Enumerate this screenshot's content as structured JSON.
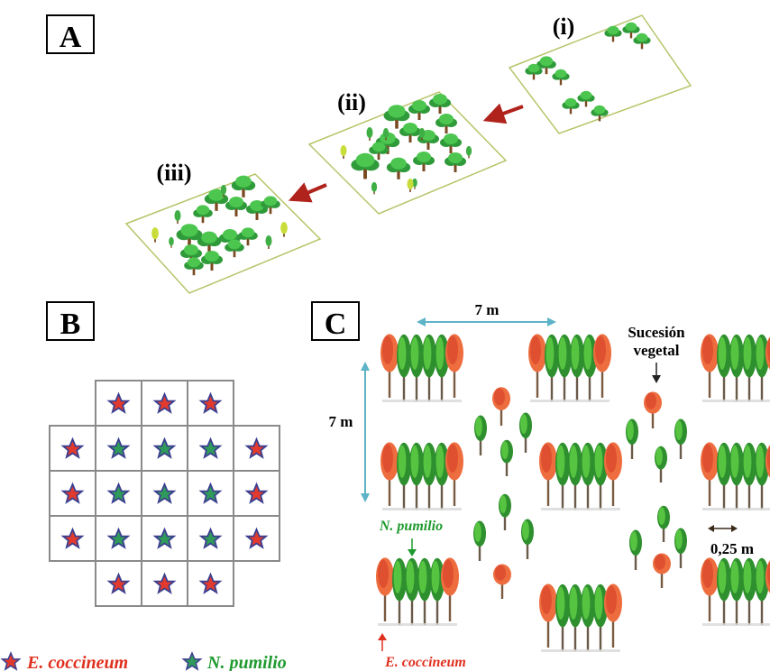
{
  "panels": {
    "a": {
      "letter": "A",
      "stages": [
        "(i)",
        "(ii)",
        "(iii)"
      ]
    },
    "b": {
      "letter": "B",
      "grid_rows": [
        [
          "",
          "red",
          "red",
          "red",
          ""
        ],
        [
          "red",
          "green",
          "green",
          "green",
          "red"
        ],
        [
          "red",
          "green",
          "green",
          "green",
          "red"
        ],
        [
          "red",
          "green",
          "green",
          "green",
          "red"
        ],
        [
          "",
          "red",
          "red",
          "red",
          ""
        ]
      ]
    },
    "c": {
      "letter": "C",
      "width_label": "7 m",
      "height_label": "7 m",
      "succession_line1": "Sucesión",
      "succession_line2": "vegetal",
      "spacing_label": "0,25 m",
      "n_pumilio_label": "N. pumilio",
      "e_coccineum_label": "E. coccineum"
    }
  },
  "legend": {
    "e_coccineum": "E. coccineum",
    "n_pumilio": "N. pumilio"
  },
  "colors": {
    "star_red": "#e23b2e",
    "star_green": "#2f9a5a",
    "star_outline": "#3b3f8f",
    "dim_arrow": "#5eb3c8",
    "plot_border": "#b8c46a",
    "arrow_red": "#b0231c"
  }
}
